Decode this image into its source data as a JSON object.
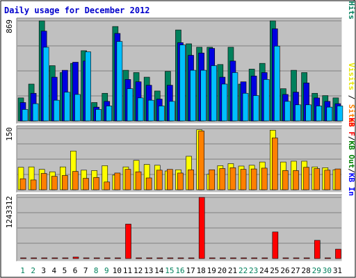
{
  "chart_data": {
    "type": "bar",
    "title": "Daily usage for December 2012",
    "categories": [
      "1",
      "2",
      "3",
      "4",
      "5",
      "6",
      "7",
      "8",
      "9",
      "10",
      "11",
      "12",
      "13",
      "14",
      "15",
      "16",
      "17",
      "18",
      "19",
      "20",
      "21",
      "22",
      "23",
      "24",
      "25",
      "26",
      "27",
      "28",
      "29",
      "30",
      "31"
    ],
    "weekend_days": [
      "1",
      "2",
      "8",
      "9",
      "15",
      "16",
      "22",
      "23",
      "29",
      "30"
    ],
    "colors": {
      "background": "#c0c0c0",
      "hits": "#00805c",
      "files": "#0000e0",
      "pages": "#00bfff",
      "visits": "#ffff00",
      "sites": "#ff8000",
      "kb_in": "#0000ff",
      "kb_out": "#008000",
      "kb_f": "#ff0000",
      "title": "#0000cc",
      "weekend_label": "#00805c",
      "weekday_label": "#000000"
    },
    "panels": [
      {
        "max_label": "869",
        "ymax": 869,
        "side_label_parts": [
          {
            "text": "Pages",
            "color": "#00bfff"
          },
          {
            "text": "/",
            "color": "#000000"
          },
          {
            "text": "Files",
            "color": "#0000e0"
          },
          {
            "text": "/",
            "color": "#000000"
          },
          {
            "text": "Hits",
            "color": "#00805c"
          }
        ],
        "series": [
          {
            "name": "Hits",
            "color": "#00805c",
            "values": [
              200,
              320,
              869,
              480,
              420,
              500,
              610,
              160,
              240,
              820,
              440,
              420,
              380,
              260,
              430,
              790,
              670,
              640,
              640,
              490,
              640,
              320,
              450,
              500,
              869,
              280,
              440,
              420,
              240,
              220,
              200
            ]
          },
          {
            "name": "Files",
            "color": "#0000e0",
            "values": [
              160,
              240,
              780,
              380,
              440,
              510,
              520,
              120,
              170,
              760,
              360,
              340,
              310,
              190,
              310,
              680,
              570,
              590,
              630,
              380,
              520,
              340,
              390,
              420,
              800,
              230,
              250,
              330,
              200,
              170,
              150
            ]
          },
          {
            "name": "Pages",
            "color": "#00bfff",
            "values": [
              100,
              150,
              640,
              180,
              250,
              230,
              600,
              100,
              130,
              690,
              280,
              200,
              180,
              130,
              170,
              660,
              440,
              440,
              480,
              320,
              420,
              240,
              220,
              360,
              650,
              170,
              140,
              140,
              130,
              120,
              130
            ]
          }
        ]
      },
      {
        "max_label": "150",
        "ymax": 150,
        "side_label_parts": [
          {
            "text": "Visits",
            "color": "#e6e600"
          },
          {
            "text": " / ",
            "color": "#000000"
          },
          {
            "text": "Sites",
            "color": "#ff8000"
          }
        ],
        "series": [
          {
            "name": "Visits",
            "color": "#ffff00",
            "values": [
              55,
              56,
              50,
              44,
              56,
              95,
              48,
              47,
              59,
              36,
              56,
              72,
              62,
              60,
              46,
              49,
              82,
              147,
              38,
              59,
              64,
              58,
              60,
              68,
              146,
              68,
              70,
              70,
              56,
              54,
              49
            ]
          },
          {
            "name": "Sites",
            "color": "#ff8000",
            "values": [
              27,
              24,
              40,
              33,
              35,
              45,
              28,
              30,
              19,
              41,
              50,
              44,
              29,
              48,
              50,
              41,
              49,
              144,
              49,
              52,
              54,
              50,
              51,
              53,
              127,
              47,
              47,
              55,
              52,
              48,
              51
            ]
          }
        ]
      },
      {
        "max_label": "1243312",
        "ymax": 1243312,
        "side_label_parts": [
          {
            "text": "KB F",
            "color": "#ff0000"
          },
          {
            "text": "/",
            "color": "#000000"
          },
          {
            "text": "KB Out",
            "color": "#008000"
          },
          {
            "text": "/",
            "color": "#000000"
          },
          {
            "text": "KB In",
            "color": "#0000ff"
          }
        ],
        "series": [
          {
            "name": "KB F",
            "color": "#ff0000",
            "values": [
              12000,
              12000,
              12000,
              12000,
              12000,
              30000,
              12000,
              12000,
              12000,
              12000,
              700000,
              12000,
              12000,
              12000,
              12000,
              12000,
              12000,
              1243312,
              12000,
              12000,
              12000,
              12000,
              12000,
              12000,
              540000,
              12000,
              12000,
              12000,
              370000,
              12000,
              190000
            ]
          }
        ]
      }
    ]
  }
}
